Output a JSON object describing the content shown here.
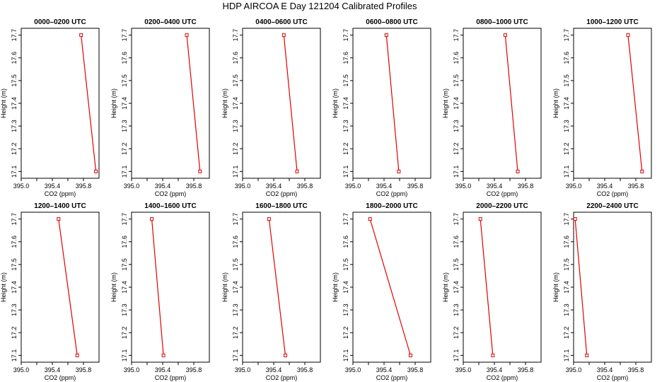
{
  "chart_data": {
    "type": "line",
    "title": "HDP AIRCOA E  Day 121204  Calibrated Profiles",
    "xlabel": "CO2 (ppm)",
    "ylabel": "Height (m)",
    "xlim": [
      395.0,
      396.0
    ],
    "ylim": [
      17.07,
      17.73
    ],
    "xticks": [
      "395.0",
      "395.4",
      "395.8"
    ],
    "yticks": [
      "17.1",
      "17.2",
      "17.3",
      "17.4",
      "17.5",
      "17.6",
      "17.7"
    ],
    "line_color": "#e00000",
    "panels": [
      {
        "title": "0000–0200 UTC",
        "points": [
          {
            "co2": 395.77,
            "height": 17.7
          },
          {
            "co2": 395.96,
            "height": 17.1
          }
        ]
      },
      {
        "title": "0200–0400 UTC",
        "points": [
          {
            "co2": 395.71,
            "height": 17.7
          },
          {
            "co2": 395.88,
            "height": 17.1
          }
        ]
      },
      {
        "title": "0400–0600 UTC",
        "points": [
          {
            "co2": 395.53,
            "height": 17.7
          },
          {
            "co2": 395.7,
            "height": 17.1
          }
        ]
      },
      {
        "title": "0600–0800 UTC",
        "points": [
          {
            "co2": 395.43,
            "height": 17.7
          },
          {
            "co2": 395.59,
            "height": 17.1
          }
        ]
      },
      {
        "title": "0800–1000 UTC",
        "points": [
          {
            "co2": 395.54,
            "height": 17.7
          },
          {
            "co2": 395.7,
            "height": 17.1
          }
        ]
      },
      {
        "title": "1000–1200 UTC",
        "points": [
          {
            "co2": 395.7,
            "height": 17.7
          },
          {
            "co2": 395.88,
            "height": 17.1
          }
        ]
      },
      {
        "title": "1200–1400 UTC",
        "points": [
          {
            "co2": 395.48,
            "height": 17.7
          },
          {
            "co2": 395.72,
            "height": 17.1
          }
        ]
      },
      {
        "title": "1400–1600 UTC",
        "points": [
          {
            "co2": 395.26,
            "height": 17.7
          },
          {
            "co2": 395.41,
            "height": 17.1
          }
        ]
      },
      {
        "title": "1600–1800 UTC",
        "points": [
          {
            "co2": 395.34,
            "height": 17.7
          },
          {
            "co2": 395.55,
            "height": 17.1
          }
        ]
      },
      {
        "title": "1800–2000 UTC",
        "points": [
          {
            "co2": 395.22,
            "height": 17.7
          },
          {
            "co2": 395.74,
            "height": 17.1
          }
        ]
      },
      {
        "title": "2000–2200 UTC",
        "points": [
          {
            "co2": 395.22,
            "height": 17.7
          },
          {
            "co2": 395.38,
            "height": 17.1
          }
        ]
      },
      {
        "title": "2200–2400 UTC",
        "points": [
          {
            "co2": 395.02,
            "height": 17.7
          },
          {
            "co2": 395.17,
            "height": 17.1
          }
        ]
      }
    ]
  }
}
